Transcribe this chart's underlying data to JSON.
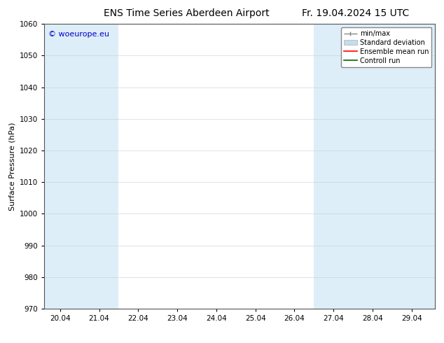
{
  "title": "ENS Time Series Aberdeen Airport",
  "date_label": "Fr. 19.04.2024 15 UTC",
  "ylabel": "Surface Pressure (hPa)",
  "ylim": [
    970,
    1060
  ],
  "yticks": [
    970,
    980,
    990,
    1000,
    1010,
    1020,
    1030,
    1040,
    1050,
    1060
  ],
  "xlim_start": 19.6,
  "xlim_end": 29.6,
  "xtick_labels": [
    "20.04",
    "21.04",
    "22.04",
    "23.04",
    "24.04",
    "25.04",
    "26.04",
    "27.04",
    "28.04",
    "29.04"
  ],
  "xtick_positions": [
    20.0,
    21.0,
    22.0,
    23.0,
    24.0,
    25.0,
    26.0,
    27.0,
    28.0,
    29.0
  ],
  "shaded_bands": [
    {
      "x_start": 19.6,
      "x_end": 20.5,
      "color": "#ddeef8"
    },
    {
      "x_start": 20.5,
      "x_end": 21.5,
      "color": "#ddeef8"
    },
    {
      "x_start": 26.5,
      "x_end": 27.5,
      "color": "#ddeef8"
    },
    {
      "x_start": 27.5,
      "x_end": 28.5,
      "color": "#ddeef8"
    },
    {
      "x_start": 28.5,
      "x_end": 29.6,
      "color": "#ddeef8"
    }
  ],
  "copyright_text": "© woeurope.eu",
  "copyright_color": "#0000cc",
  "legend_items": [
    {
      "label": "min/max",
      "style": "errorbar"
    },
    {
      "label": "Standard deviation",
      "style": "fill"
    },
    {
      "label": "Ensemble mean run",
      "color": "#ff0000",
      "style": "line"
    },
    {
      "label": "Controll run",
      "color": "#006600",
      "style": "line"
    }
  ],
  "bg_color": "#ffffff",
  "plot_bg_color": "#ffffff",
  "title_fontsize": 10,
  "axis_fontsize": 8,
  "tick_fontsize": 7.5,
  "legend_fontsize": 7
}
